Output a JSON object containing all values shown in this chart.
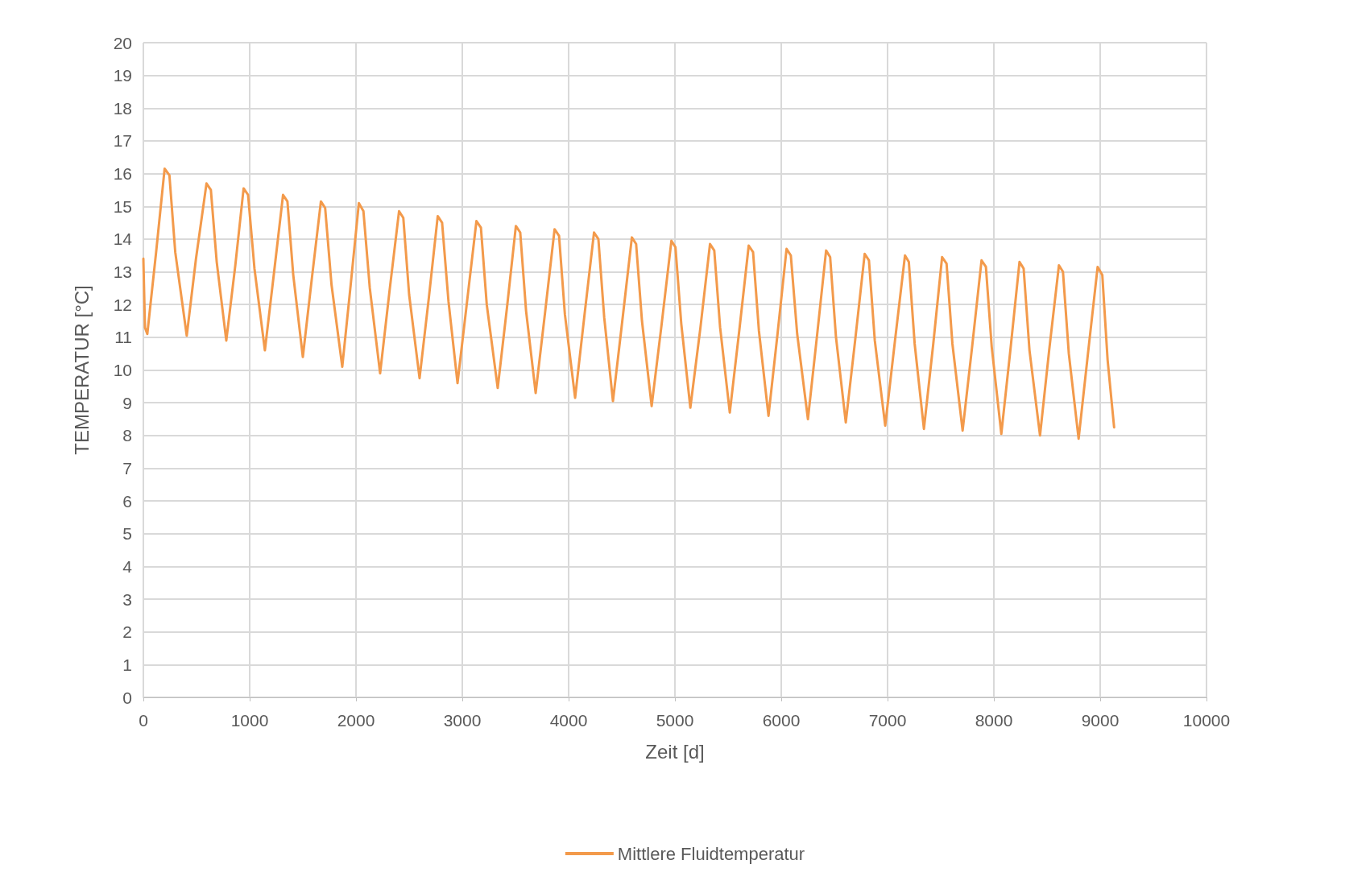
{
  "chart_data": {
    "type": "line",
    "xlabel": "Zeit [d]",
    "ylabel": "TEMPERATUR [°C]",
    "xlim": [
      0,
      10000
    ],
    "xticks": [
      0,
      1000,
      2000,
      3000,
      4000,
      5000,
      6000,
      7000,
      8000,
      9000,
      10000
    ],
    "ylim": [
      0,
      20
    ],
    "yticks": [
      0,
      1,
      2,
      3,
      4,
      5,
      6,
      7,
      8,
      9,
      10,
      11,
      12,
      13,
      14,
      15,
      16,
      17,
      18,
      19,
      20
    ],
    "grid": true,
    "legend": "bottom",
    "marker": "none",
    "line_style": "solid",
    "x": [
      0,
      15,
      37,
      120,
      200,
      245,
      300,
      408,
      495,
      594,
      635,
      690,
      780,
      865,
      943,
      985,
      1045,
      1143,
      1230,
      1314,
      1355,
      1410,
      1500,
      1585,
      1670,
      1710,
      1770,
      1871,
      1950,
      2027,
      2070,
      2130,
      2227,
      2315,
      2405,
      2445,
      2500,
      2598,
      2685,
      2769,
      2810,
      2870,
      2955,
      3045,
      3133,
      3175,
      3230,
      3333,
      3420,
      3504,
      3545,
      3600,
      3690,
      3780,
      3868,
      3910,
      3965,
      4061,
      4150,
      4239,
      4280,
      4335,
      4417,
      4505,
      4595,
      4635,
      4690,
      4781,
      4875,
      4967,
      5005,
      5060,
      5145,
      5240,
      5330,
      5370,
      5425,
      5516,
      5605,
      5694,
      5735,
      5790,
      5880,
      5965,
      6050,
      6090,
      6150,
      6251,
      6335,
      6422,
      6460,
      6515,
      6607,
      6695,
      6785,
      6825,
      6880,
      6978,
      7070,
      7164,
      7200,
      7255,
      7342,
      7430,
      7513,
      7555,
      7610,
      7706,
      7795,
      7884,
      7925,
      7980,
      8070,
      8155,
      8241,
      8280,
      8335,
      8434,
      8520,
      8612,
      8650,
      8705,
      8797,
      8885,
      8976,
      9020,
      9070,
      9131
    ],
    "series": [
      {
        "name": "Mittlere Fluidtemperatur",
        "color": "#f39a4b",
        "values": [
          13.4,
          11.3,
          11.1,
          13.6,
          16.15,
          15.95,
          13.6,
          11.05,
          13.4,
          15.7,
          15.5,
          13.3,
          10.9,
          13.2,
          15.55,
          15.35,
          13.1,
          10.6,
          13.0,
          15.35,
          15.15,
          12.9,
          10.4,
          12.8,
          15.15,
          14.95,
          12.6,
          10.1,
          12.6,
          15.1,
          14.85,
          12.5,
          9.9,
          12.4,
          14.85,
          14.65,
          12.3,
          9.75,
          12.2,
          14.7,
          14.5,
          12.1,
          9.6,
          12.1,
          14.55,
          14.35,
          12.0,
          9.45,
          11.9,
          14.4,
          14.2,
          11.8,
          9.3,
          11.8,
          14.3,
          14.1,
          11.7,
          9.15,
          11.7,
          14.2,
          14.0,
          11.6,
          9.05,
          11.5,
          14.05,
          13.85,
          11.5,
          8.9,
          11.4,
          13.95,
          13.75,
          11.4,
          8.85,
          11.3,
          13.85,
          13.65,
          11.3,
          8.7,
          11.2,
          13.8,
          13.6,
          11.2,
          8.6,
          11.1,
          13.7,
          13.5,
          11.1,
          8.5,
          11.0,
          13.65,
          13.45,
          11.0,
          8.4,
          10.9,
          13.55,
          13.35,
          10.9,
          8.3,
          10.9,
          13.5,
          13.3,
          10.8,
          8.2,
          10.8,
          13.45,
          13.25,
          10.8,
          8.15,
          10.7,
          13.35,
          13.15,
          10.7,
          8.05,
          10.6,
          13.3,
          13.1,
          10.6,
          8.0,
          10.6,
          13.2,
          13.0,
          10.5,
          7.9,
          10.5,
          13.15,
          12.9,
          10.3,
          8.25
        ]
      }
    ]
  }
}
